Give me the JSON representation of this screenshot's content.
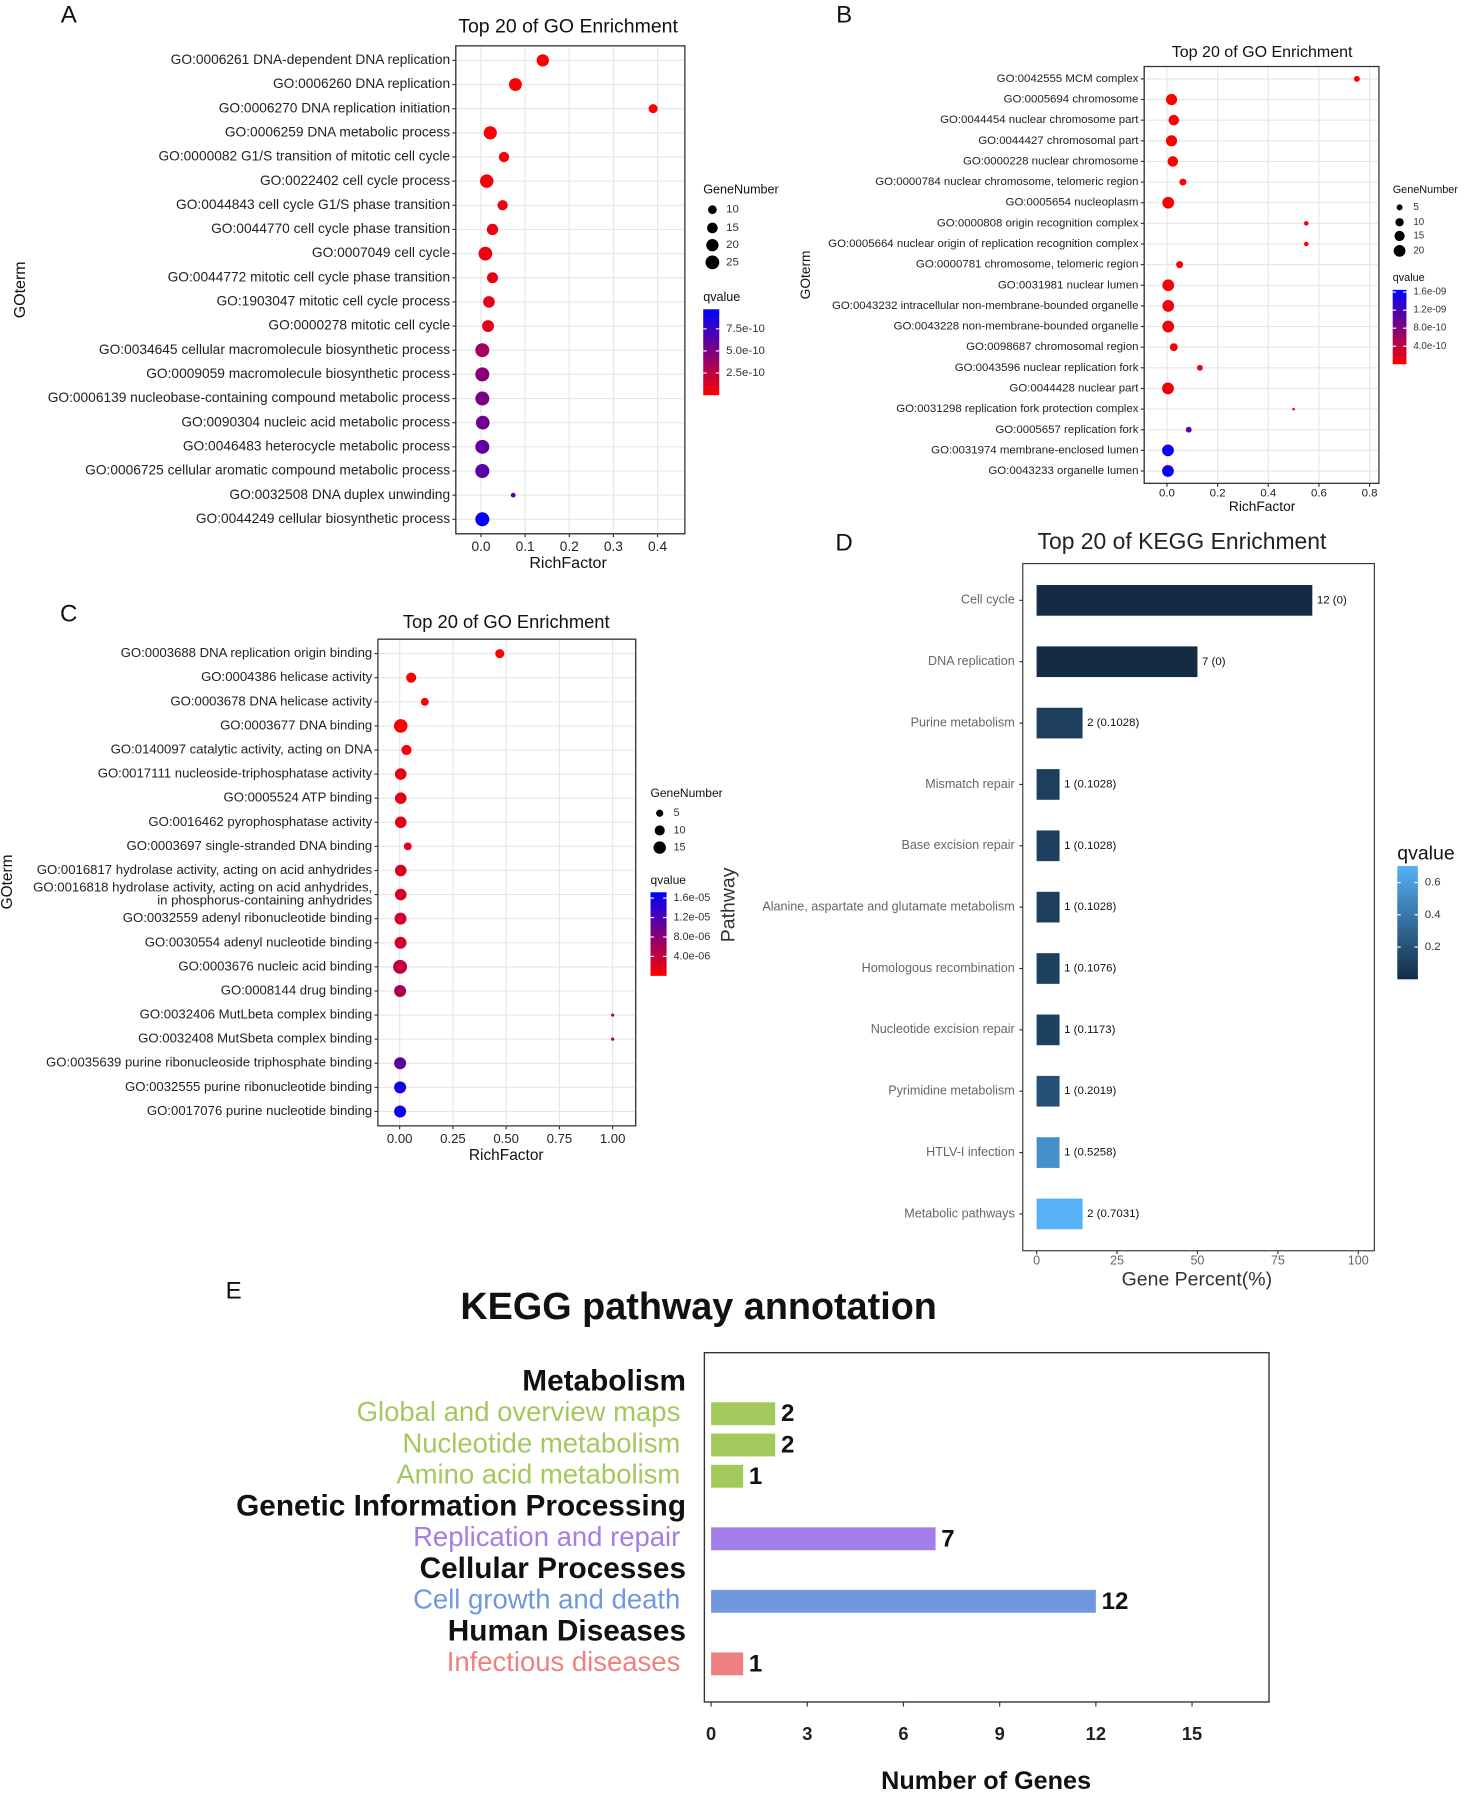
{
  "chart_data": [
    {
      "type": "bubble",
      "panel": "A",
      "title": "Top 20 of GO Enrichment",
      "x_label": "RichFactor",
      "y_label": "GOterm",
      "categories": [
        "GO:0006261 DNA-dependent DNA replication",
        "GO:0006260 DNA replication",
        "GO:0006270 DNA replication initiation",
        "GO:0006259 DNA metabolic process",
        "GO:0000082 G1/S transition of mitotic cell cycle",
        "GO:0022402 cell cycle process",
        "GO:0044843 cell cycle G1/S phase transition",
        "GO:0044770 cell cycle phase transition",
        "GO:0007049 cell cycle",
        "GO:0044772 mitotic cell cycle phase transition",
        "GO:1903047 mitotic cell cycle process",
        "GO:0000278 mitotic cell cycle",
        "GO:0034645 cellular macromolecule biosynthetic process",
        "GO:0009059 macromolecule biosynthetic process",
        "GO:0006139 nucleobase-containing compound metabolic process",
        "GO:0090304 nucleic acid metabolic process",
        "GO:0046483 heterocycle metabolic process",
        "GO:0006725 cellular aromatic compound metabolic process",
        "GO:0032508 DNA duplex unwinding",
        "GO:0044249 cellular biosynthetic process"
      ],
      "values": [
        0.14,
        0.078,
        0.39,
        0.021,
        0.052,
        0.013,
        0.049,
        0.026,
        0.01,
        0.026,
        0.018,
        0.016,
        0.003,
        0.003,
        0.003,
        0.004,
        0.003,
        0.003,
        0.073,
        0.003
      ],
      "sizes": [
        20,
        22,
        11,
        23,
        14,
        24,
        14,
        17,
        25,
        16,
        18,
        19,
        26,
        26,
        26,
        25,
        26,
        26,
        3,
        26
      ],
      "qvalues": [
        1e-11,
        1e-11,
        1e-11,
        3e-11,
        3e-11,
        4e-11,
        5e-11,
        6e-11,
        7e-11,
        8e-11,
        9e-11,
        1e-10,
        3.5e-10,
        4.5e-10,
        5e-10,
        5.5e-10,
        6e-10,
        6.3e-10,
        6.5e-10,
        9.5e-10
      ],
      "xlim": [
        -0.057,
        0.462
      ],
      "xticks": [
        {
          "value": 0,
          "label": "0.0"
        },
        0.1,
        0.2,
        0.3,
        0.4
      ],
      "grid": true,
      "size_legend": {
        "title": "GeneNumber",
        "values": [
          10,
          15,
          20,
          25
        ]
      },
      "color_legend": {
        "title": "qvalue",
        "low_color": "#ff0000",
        "high_color": "#0000ff",
        "clim": [
          0,
          9.7e-10
        ],
        "ticks": [
          2.5e-10,
          {
            "value": 5e-10,
            "label": "5.0e-10"
          },
          7.5e-10
        ]
      }
    },
    {
      "type": "bubble",
      "panel": "B",
      "title": "Top 20 of GO Enrichment",
      "x_label": "RichFactor",
      "y_label": "GOterm",
      "categories": [
        "GO:0042555 MCM complex",
        "GO:0005694 chromosome",
        "GO:0044454 nuclear chromosome part",
        "GO:0044427 chromosomal part",
        "GO:0000228 nuclear chromosome",
        "GO:0000784 nuclear chromosome, telomeric region",
        "GO:0005654 nucleoplasm",
        "GO:0000808 origin recognition complex",
        "GO:0005664 nuclear origin of replication recognition complex",
        "GO:0000781 chromosome, telomeric region",
        "GO:0031981 nuclear lumen",
        "GO:0043232 intracellular non-membrane-bounded organelle",
        "GO:0043228 non-membrane-bounded organelle",
        "GO:0098687 chromosomal region",
        "GO:0043596 nuclear replication fork",
        "GO:0044428 nuclear part",
        "GO:0031298 replication fork protection complex",
        "GO:0005657 replication fork",
        "GO:0031974 membrane-enclosed lumen",
        "GO:0043233 organelle lumen"
      ],
      "values": [
        0.75,
        0.018,
        0.027,
        0.018,
        0.023,
        0.063,
        0.005,
        0.55,
        0.55,
        0.05,
        0.005,
        0.005,
        0.005,
        0.027,
        0.13,
        0.004,
        0.5,
        0.086,
        0.004,
        0.004
      ],
      "sizes": [
        5,
        18,
        16,
        18,
        16,
        7,
        20,
        3,
        3,
        7,
        20,
        20,
        20,
        9,
        5,
        20,
        1,
        5,
        20,
        20
      ],
      "qvalues": [
        1e-11,
        1e-11,
        1e-11,
        1e-11,
        1e-11,
        2e-11,
        3e-11,
        3e-11,
        3e-11,
        4e-11,
        5e-11,
        6e-11,
        6e-11,
        7e-11,
        8e-11,
        9e-11,
        1e-10,
        1e-09,
        1.6e-09,
        1.6e-09
      ],
      "xlim": [
        -0.09,
        0.837
      ],
      "xticks": [
        {
          "value": 0,
          "label": "0.0"
        },
        0.2,
        0.4,
        0.6,
        0.8
      ],
      "grid": true,
      "size_legend": {
        "title": "GeneNumber",
        "values": [
          5,
          10,
          15,
          20
        ]
      },
      "color_legend": {
        "title": "qvalue",
        "low_color": "#ff0000",
        "high_color": "#0000ff",
        "clim": [
          0,
          1.65e-09
        ],
        "ticks": [
          {
            "value": 4e-10,
            "label": "4.0e-10"
          },
          {
            "value": 8e-10,
            "label": "8.0e-10"
          },
          {
            "value": 1.2e-09,
            "label": "1.2e-09"
          },
          {
            "value": 1.6e-09,
            "label": "1.6e-09"
          }
        ]
      }
    },
    {
      "type": "bubble",
      "panel": "C",
      "title": "Top 20 of GO Enrichment",
      "x_label": "RichFactor",
      "y_label": "GOterm",
      "categories": [
        "GO:0003688 DNA replication origin binding",
        "GO:0004386 helicase activity",
        "GO:0003678 DNA helicase activity",
        "GO:0003677 DNA binding",
        "GO:0140097 catalytic activity, acting on DNA",
        "GO:0017111 nucleoside-triphosphatase activity",
        "GO:0005524 ATP binding",
        "GO:0016462 pyrophosphatase activity",
        "GO:0003697 single-stranded DNA binding",
        "GO:0016817 hydrolase activity, acting on acid anhydrides",
        [
          "GO:0016818 hydrolase activity, acting on acid anhydrides,",
          "in phosphorus-containing anhydrides"
        ],
        "GO:0032559 adenyl ribonucleotide binding",
        "GO:0030554 adenyl nucleotide binding",
        "GO:0003676 nucleic acid binding",
        "GO:0008144 drug binding",
        "GO:0032406 MutLbeta complex binding",
        "GO:0032408 MutSbeta complex binding",
        "GO:0035639 purine ribonucleoside triphosphate binding",
        "GO:0032555 purine ribonucleotide binding",
        "GO:0017076 purine nucleotide binding"
      ],
      "values": [
        0.47,
        0.054,
        0.118,
        0.005,
        0.032,
        0.005,
        0.005,
        0.005,
        0.038,
        0.005,
        0.005,
        0.004,
        0.004,
        0.002,
        0.002,
        1,
        1,
        0.002,
        0.002,
        0.002
      ],
      "sizes": [
        8,
        10,
        6,
        18,
        10,
        13,
        13,
        13,
        6,
        13,
        13,
        14,
        14,
        19,
        14,
        1,
        1,
        14,
        14,
        14
      ],
      "qvalues": [
        1e-07,
        1e-07,
        2e-07,
        3e-07,
        5e-07,
        1.5e-06,
        1.6e-06,
        1.8e-06,
        2e-06,
        2.5e-06,
        2.6e-06,
        3e-06,
        3.2e-06,
        4e-06,
        5.5e-06,
        6.5e-06,
        6.5e-06,
        1.1e-05,
        1.6e-05,
        1.65e-05
      ],
      "xlim": [
        -0.102,
        1.108
      ],
      "xticks": [
        {
          "value": 0,
          "label": "0.00"
        },
        0.25,
        {
          "value": 0.5,
          "label": "0.50"
        },
        0.75,
        {
          "value": 1,
          "label": "1.00"
        }
      ],
      "grid": true,
      "size_legend": {
        "title": "GeneNumber",
        "values": [
          5,
          10,
          15
        ]
      },
      "color_legend": {
        "title": "qvalue",
        "low_color": "#ff0000",
        "high_color": "#0000ff",
        "clim": [
          0,
          1.72e-05
        ],
        "ticks": [
          {
            "value": 4e-06,
            "label": "4.0e-06"
          },
          {
            "value": 8e-06,
            "label": "8.0e-06"
          },
          {
            "value": 1.2e-05,
            "label": "1.2e-05"
          },
          {
            "value": 1.6e-05,
            "label": "1.6e-05"
          }
        ]
      }
    },
    {
      "type": "bar",
      "panel": "D",
      "title": "Top 20 of KEGG Enrichment",
      "x_label": "Gene Percent(%)",
      "y_label": "Pathway",
      "categories": [
        "Cell cycle",
        "DNA replication",
        "Purine metabolism",
        "Mismatch repair",
        "Base excision repair",
        "Alanine, aspartate and glutamate metabolism",
        "Homologous recombination",
        "Nucleotide excision repair",
        "Pyrimidine metabolism",
        "HTLV-I infection",
        "Metabolic pathways"
      ],
      "values": [
        85.71,
        50,
        14.29,
        7.14,
        7.14,
        7.14,
        7.14,
        7.14,
        7.14,
        7.14,
        14.29
      ],
      "qvalues": [
        0,
        0,
        0.1028,
        0.1028,
        0.1028,
        0.1028,
        0.1076,
        0.1173,
        0.2019,
        0.5258,
        0.7031
      ],
      "bar_labels": [
        "12 (0)",
        "7 (0)",
        "2 (0.1028)",
        "1 (0.1028)",
        "1 (0.1028)",
        "1 (0.1028)",
        "1 (0.1076)",
        "1 (0.1173)",
        "1 (0.2019)",
        "1 (0.5258)",
        "2 (0.7031)"
      ],
      "xlim": [
        -4.3,
        105
      ],
      "xticks": [
        0,
        25,
        50,
        75,
        100
      ],
      "grid": false,
      "color_legend": {
        "title": "qvalue",
        "low_color": "#132b43",
        "high_color": "#56b1f7",
        "clim": [
          0,
          0.7031
        ],
        "ticks": [
          0.2,
          0.4,
          0.6
        ]
      }
    },
    {
      "type": "grouped_bar",
      "panel": "E",
      "title": "KEGG pathway annotation",
      "x_label": "Number of Genes",
      "groups": [
        {
          "name": "Metabolism",
          "color": "#a3c95d",
          "categories": [
            "Global and overview maps",
            "Nucleotide metabolism",
            "Amino acid metabolism"
          ],
          "values": [
            2,
            2,
            1
          ]
        },
        {
          "name": "Genetic Information Processing",
          "color": "#a37de8",
          "categories": [
            "Replication and repair"
          ],
          "values": [
            7
          ]
        },
        {
          "name": "Cellular Processes",
          "color": "#6f98e0",
          "categories": [
            "Cell growth and death"
          ],
          "values": [
            12
          ]
        },
        {
          "name": "Human Diseases",
          "color": "#ef8080",
          "categories": [
            "Infectious diseases"
          ],
          "values": [
            1
          ]
        }
      ],
      "xlim": [
        -0.21,
        17.4
      ],
      "xticks": [
        0,
        3,
        6,
        9,
        12,
        15
      ]
    }
  ]
}
